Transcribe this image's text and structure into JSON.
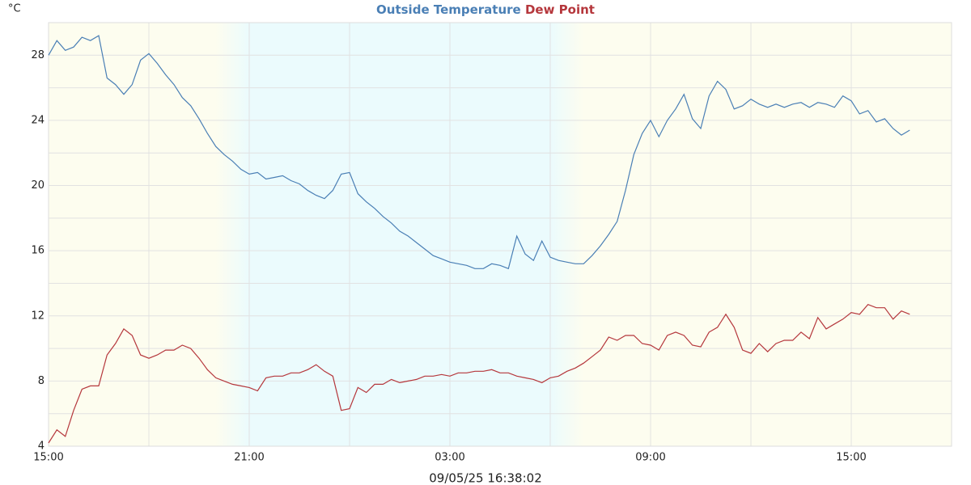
{
  "chart_data": {
    "type": "line",
    "title_separator": " ",
    "y_unit": "°C",
    "footer": "09/05/25 16:38:02",
    "x": [
      0,
      0.25,
      0.5,
      0.75,
      1,
      1.25,
      1.5,
      1.75,
      2,
      2.25,
      2.5,
      2.75,
      3,
      3.25,
      3.5,
      3.75,
      4,
      4.25,
      4.5,
      4.75,
      5,
      5.25,
      5.5,
      5.75,
      6,
      6.25,
      6.5,
      6.75,
      7,
      7.25,
      7.5,
      7.75,
      8,
      8.25,
      8.5,
      8.75,
      9,
      9.25,
      9.5,
      9.75,
      10,
      10.25,
      10.5,
      10.75,
      11,
      11.25,
      11.5,
      11.75,
      12,
      12.25,
      12.5,
      12.75,
      13,
      13.25,
      13.5,
      13.75,
      14,
      14.25,
      14.5,
      14.75,
      15,
      15.25,
      15.5,
      15.75,
      16,
      16.25,
      16.5,
      16.75,
      17,
      17.25,
      17.5,
      17.75,
      18,
      18.25,
      18.5,
      18.75,
      19,
      19.25,
      19.5,
      19.75,
      20,
      20.25,
      20.5,
      20.75,
      21,
      21.25,
      21.5,
      21.75,
      22,
      22.25,
      22.5,
      22.75,
      23,
      23.25,
      23.5,
      23.75,
      24,
      24.25,
      24.5,
      24.75,
      25,
      25.25,
      25.5,
      25.75
    ],
    "series": [
      {
        "name": "Outside Temperature",
        "color": "#4a7fb5",
        "values": [
          28.0,
          28.9,
          28.3,
          28.5,
          29.1,
          28.9,
          29.2,
          26.6,
          26.2,
          25.6,
          26.2,
          27.7,
          28.1,
          27.5,
          26.8,
          26.2,
          25.4,
          24.9,
          24.1,
          23.2,
          22.4,
          21.9,
          21.5,
          21.0,
          20.7,
          20.8,
          20.4,
          20.5,
          20.6,
          20.3,
          20.1,
          19.7,
          19.4,
          19.2,
          19.7,
          20.7,
          20.8,
          19.5,
          19.0,
          18.6,
          18.1,
          17.7,
          17.2,
          16.9,
          16.5,
          16.1,
          15.7,
          15.5,
          15.3,
          15.2,
          15.1,
          14.9,
          14.9,
          15.2,
          15.1,
          14.9,
          16.9,
          15.8,
          15.4,
          16.6,
          15.6,
          15.4,
          15.3,
          15.2,
          15.2,
          15.7,
          16.3,
          17.0,
          17.8,
          19.7,
          21.9,
          23.2,
          24.0,
          23.0,
          24.0,
          24.7,
          25.6,
          24.1,
          23.5,
          25.5,
          26.4,
          25.9,
          24.7,
          24.9,
          25.3,
          25.0,
          24.8,
          25.0,
          24.8,
          25.0,
          25.1,
          24.8,
          25.1,
          25.0,
          24.8,
          25.5,
          25.2,
          24.4,
          24.6,
          23.9,
          24.1,
          23.5,
          23.1,
          23.4
        ]
      },
      {
        "name": "Dew Point",
        "color": "#b5373c",
        "values": [
          4.2,
          5.0,
          4.6,
          6.2,
          7.5,
          7.7,
          7.7,
          9.6,
          10.3,
          11.2,
          10.8,
          9.6,
          9.4,
          9.6,
          9.9,
          9.9,
          10.2,
          10.0,
          9.4,
          8.7,
          8.2,
          8.0,
          7.8,
          7.7,
          7.6,
          7.4,
          8.2,
          8.3,
          8.3,
          8.5,
          8.5,
          8.7,
          9.0,
          8.6,
          8.3,
          6.2,
          6.3,
          7.6,
          7.3,
          7.8,
          7.8,
          8.1,
          7.9,
          8.0,
          8.1,
          8.3,
          8.3,
          8.4,
          8.3,
          8.5,
          8.5,
          8.6,
          8.6,
          8.7,
          8.5,
          8.5,
          8.3,
          8.2,
          8.1,
          7.9,
          8.2,
          8.3,
          8.6,
          8.8,
          9.1,
          9.5,
          9.9,
          10.7,
          10.5,
          10.8,
          10.8,
          10.3,
          10.2,
          9.9,
          10.8,
          11.0,
          10.8,
          10.2,
          10.1,
          11.0,
          11.3,
          12.1,
          11.3,
          9.9,
          9.7,
          10.3,
          9.8,
          10.3,
          10.5,
          10.5,
          11.0,
          10.6,
          11.9,
          11.2,
          11.5,
          11.8,
          12.2,
          12.1,
          12.7,
          12.5,
          12.5,
          11.8,
          12.3,
          12.1
        ]
      }
    ],
    "xlim": [
      0,
      27
    ],
    "xticks": [
      {
        "value": 0,
        "label": "15:00"
      },
      {
        "value": 6,
        "label": "21:00"
      },
      {
        "value": 12,
        "label": "03:00"
      },
      {
        "value": 18,
        "label": "09:00"
      },
      {
        "value": 24,
        "label": "15:00"
      }
    ],
    "xminor": [
      3,
      9,
      15,
      21
    ],
    "ylim": [
      4,
      30
    ],
    "yticks": [
      4,
      8,
      12,
      16,
      20,
      24,
      28
    ],
    "yminor": [
      6,
      10,
      14,
      18,
      22,
      26,
      30
    ],
    "grid": true,
    "day_color": "#fdfdef",
    "night_color": "#ebfbfd",
    "night_band": [
      5,
      6,
      15,
      16
    ]
  }
}
